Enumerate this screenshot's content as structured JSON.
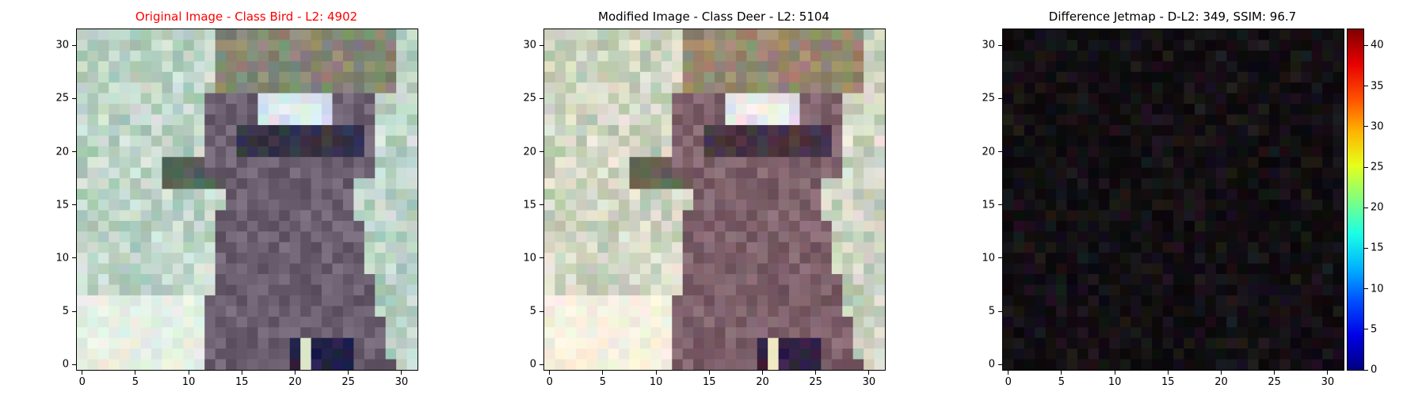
{
  "chart_data": [
    {
      "type": "image",
      "title": "Original Image - Class Bird - L2: 4902",
      "title_color": "#ff0000",
      "xlim": [
        -0.5,
        31.5
      ],
      "ylim": [
        31.5,
        -0.5
      ],
      "xticks": [
        0,
        5,
        10,
        15,
        20,
        25,
        30
      ],
      "yticks": [
        0,
        5,
        10,
        15,
        20,
        25,
        30
      ],
      "pixels": "32x32 RGB photograph: light mint/white background, grey raccoon-like animal in center"
    },
    {
      "type": "image",
      "title": "Modified Image - Class Deer - L2: 5104",
      "title_color": "#000000",
      "xlim": [
        -0.5,
        31.5
      ],
      "ylim": [
        31.5,
        -0.5
      ],
      "xticks": [
        0,
        5,
        10,
        15,
        20,
        25,
        30
      ],
      "yticks": [
        0,
        5,
        10,
        15,
        20,
        25,
        30
      ],
      "pixels": "32x32 RGB photograph, slightly perturbed version of the original (warmer tones)"
    },
    {
      "type": "heatmap",
      "title": "Difference Jetmap - D-L2: 349, SSIM: 96.7",
      "title_color": "#000000",
      "xlim": [
        -0.5,
        31.5
      ],
      "ylim": [
        31.5,
        -0.5
      ],
      "xticks": [
        0,
        5,
        10,
        15,
        20,
        25,
        30
      ],
      "yticks": [
        0,
        5,
        10,
        15,
        20,
        25,
        30
      ],
      "colormap": "jet",
      "colorbar_ticks": [
        0,
        5,
        10,
        15,
        20,
        25,
        30,
        35,
        40
      ],
      "colorbar_range": [
        0,
        42
      ]
    }
  ]
}
